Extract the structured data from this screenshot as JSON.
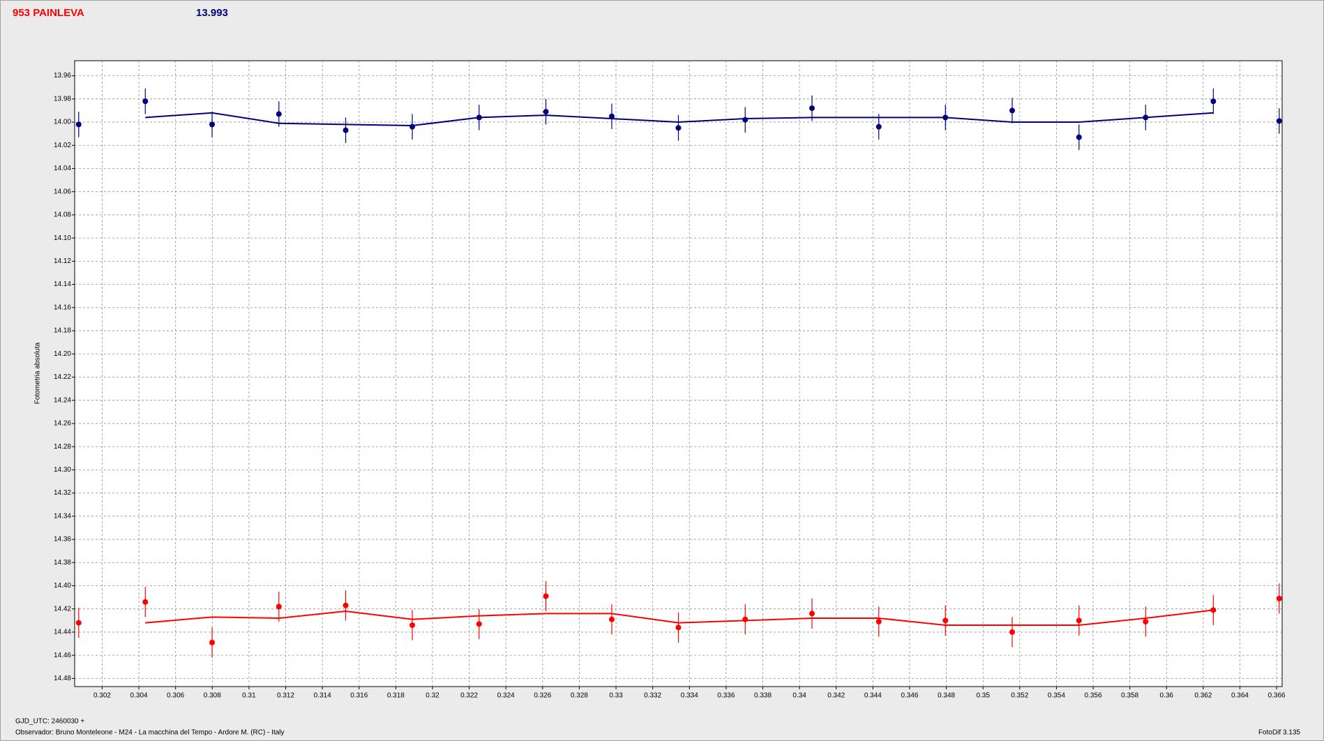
{
  "chart_data": {
    "type": "scatter",
    "title": "953 PAINLEVA",
    "reference_magnitude": 13.993,
    "ylabel": "Fotometria absoluta",
    "xlabel": "GJD_UTC: 2460030 +",
    "footer": "Observador: Bruno Monteleone - M24 - La macchina del Tempo - Ardore M. (RC) - Italy",
    "software": "FotoDif 3.135",
    "grid": true,
    "xlim": [
      0.3005,
      0.3663
    ],
    "ylim": [
      14.487,
      13.947
    ],
    "xticks": [
      0.302,
      0.304,
      0.306,
      0.308,
      0.31,
      0.312,
      0.314,
      0.316,
      0.318,
      0.32,
      0.322,
      0.324,
      0.326,
      0.328,
      0.33,
      0.332,
      0.334,
      0.336,
      0.338,
      0.34,
      0.342,
      0.344,
      0.346,
      0.348,
      0.35,
      0.352,
      0.354,
      0.356,
      0.358,
      0.36,
      0.362,
      0.364,
      0.366
    ],
    "yticks": [
      13.96,
      13.98,
      {
        "value": 14.0,
        "label": "14.00"
      },
      14.02,
      14.04,
      14.06,
      14.08,
      {
        "value": 14.1,
        "label": "14.10"
      },
      14.12,
      14.14,
      14.16,
      14.18,
      {
        "value": 14.2,
        "label": "14.20"
      },
      14.22,
      14.24,
      14.26,
      14.28,
      {
        "value": 14.3,
        "label": "14.30"
      },
      14.32,
      14.34,
      14.36,
      14.38,
      {
        "value": 14.4,
        "label": "14.40"
      },
      14.42,
      14.44,
      14.46,
      14.48
    ],
    "x": [
      0.30072,
      0.30435,
      0.30799,
      0.31163,
      0.31527,
      0.3189,
      0.32254,
      0.32618,
      0.32977,
      0.3334,
      0.33704,
      0.34068,
      0.34432,
      0.34795,
      0.35159,
      0.35523,
      0.35886,
      0.36255,
      0.36614
    ],
    "series": [
      {
        "color": "#00007f",
        "values": [
          14.002,
          13.982,
          14.002,
          13.993,
          14.007,
          14.004,
          13.996,
          13.991,
          13.995,
          14.005,
          13.998,
          13.988,
          14.004,
          13.996,
          13.99,
          14.013,
          13.996,
          13.982,
          13.999
        ],
        "errors": [
          0.011,
          0.011,
          0.011,
          0.011,
          0.011,
          0.011,
          0.011,
          0.011,
          0.011,
          0.011,
          0.011,
          0.011,
          0.011,
          0.011,
          0.011,
          0.011,
          0.011,
          0.011,
          0.011
        ],
        "line": [
          null,
          13.996,
          13.992,
          14.001,
          14.002,
          14.003,
          13.996,
          13.994,
          13.997,
          14.0,
          13.997,
          13.996,
          13.996,
          13.996,
          14.0,
          14.0,
          13.996,
          13.992,
          null
        ]
      },
      {
        "color": "#ff0000",
        "values": [
          14.432,
          14.414,
          14.449,
          14.418,
          14.417,
          14.434,
          14.433,
          14.409,
          14.429,
          14.436,
          14.429,
          14.424,
          14.431,
          14.43,
          14.44,
          14.43,
          14.431,
          14.421,
          14.411
        ],
        "errors": [
          0.013,
          0.013,
          0.013,
          0.013,
          0.013,
          0.013,
          0.013,
          0.013,
          0.013,
          0.013,
          0.013,
          0.013,
          0.013,
          0.013,
          0.013,
          0.013,
          0.013,
          0.013,
          0.013
        ],
        "line": [
          null,
          14.432,
          14.427,
          14.428,
          14.422,
          14.429,
          14.426,
          14.424,
          14.424,
          14.432,
          14.43,
          14.428,
          14.428,
          14.434,
          14.434,
          14.434,
          14.428,
          14.421,
          null
        ]
      }
    ]
  }
}
